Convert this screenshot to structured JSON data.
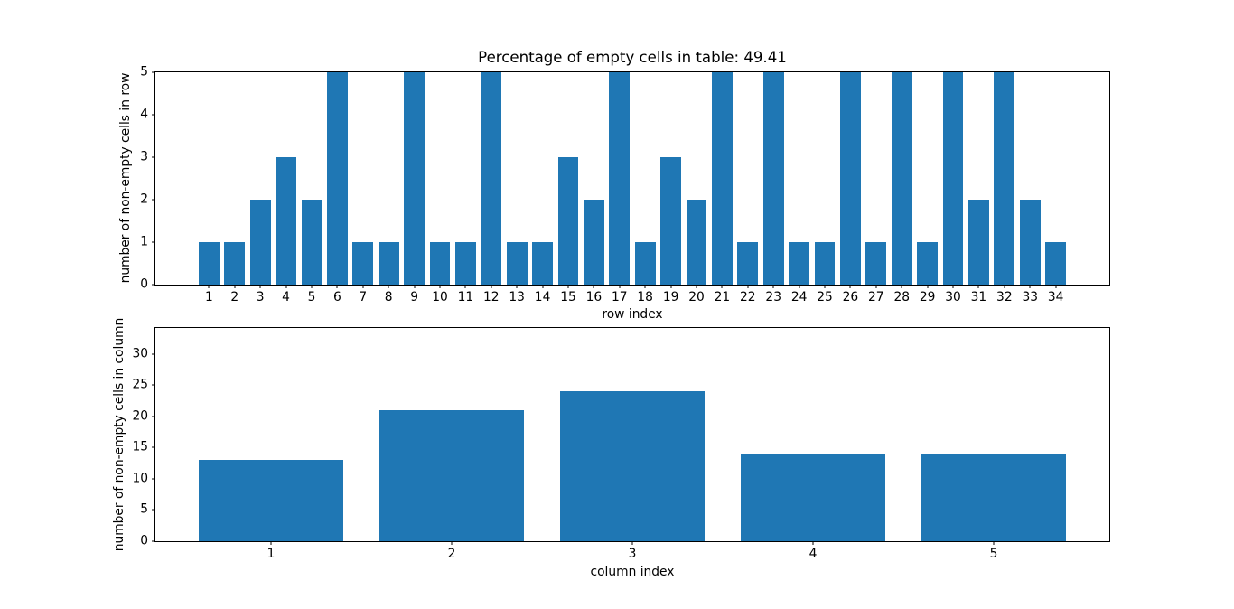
{
  "figure": {
    "background": "#ffffff",
    "bar_color": "#1f77b4",
    "spine_color": "#000000",
    "text_color": "#000000"
  },
  "chart_data": [
    {
      "type": "bar",
      "title": "Percentage of empty cells in table: 49.41",
      "xlabel": "row index",
      "ylabel": "number of non-empty cells in row",
      "categories": [
        1,
        2,
        3,
        4,
        5,
        6,
        7,
        8,
        9,
        10,
        11,
        12,
        13,
        14,
        15,
        16,
        17,
        18,
        19,
        20,
        21,
        22,
        23,
        24,
        25,
        26,
        27,
        28,
        29,
        30,
        31,
        32,
        33,
        34
      ],
      "values": [
        1,
        1,
        2,
        3,
        2,
        5,
        1,
        1,
        5,
        1,
        1,
        5,
        1,
        1,
        3,
        2,
        5,
        1,
        3,
        2,
        5,
        1,
        5,
        1,
        1,
        5,
        1,
        5,
        1,
        5,
        2,
        5,
        2,
        1
      ],
      "bar_width": 0.8,
      "xlim": [
        -1.09,
        36.09
      ],
      "ylim": [
        0,
        5
      ],
      "yticks": [
        0,
        1,
        2,
        3,
        4,
        5
      ],
      "grid": false,
      "legend": null
    },
    {
      "type": "bar",
      "title": "",
      "xlabel": "column index",
      "ylabel": "number of non-empty cells in column",
      "categories": [
        1,
        2,
        3,
        4,
        5
      ],
      "values": [
        13,
        21,
        24,
        14,
        14
      ],
      "bar_width": 0.8,
      "xlim": [
        0.36,
        5.64
      ],
      "ylim": [
        0,
        34.2
      ],
      "yticks": [
        0,
        5,
        10,
        15,
        20,
        25,
        30
      ],
      "grid": false,
      "legend": null
    }
  ]
}
